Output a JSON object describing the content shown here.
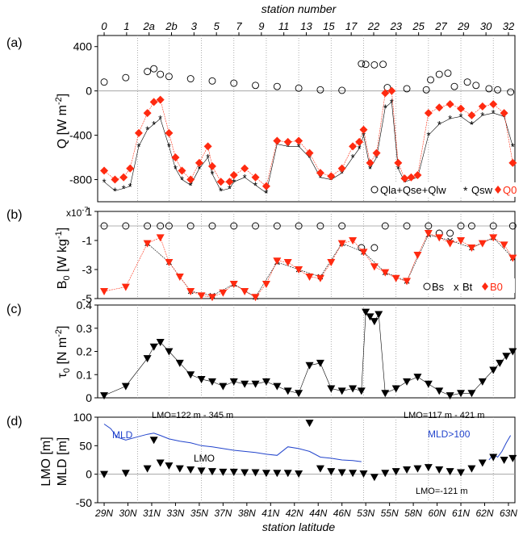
{
  "top_axis": {
    "title": "station number",
    "ticks": [
      "0",
      "1",
      "2a",
      "2b",
      "3",
      "5",
      "7",
      "9",
      "11",
      "13",
      "15",
      "17",
      "22",
      "23",
      "25",
      "27",
      "29",
      "30",
      "32"
    ]
  },
  "bottom_axis": {
    "title": "station latitude",
    "ticks": [
      "29N",
      "30N",
      "31N",
      "33N",
      "35N",
      "37N",
      "38N",
      "41N",
      "42N",
      "44N",
      "46N",
      "53N",
      "55N",
      "58N",
      "60N",
      "61N",
      "62N",
      "63N"
    ]
  },
  "colors": {
    "red": "#ff2a10",
    "blue": "#2244cc",
    "black": "#000000",
    "grid": "#999999"
  },
  "chart_data": [
    {
      "panel_label": "(a)",
      "type": "scatter",
      "ylabel": "Q [W m",
      "ylabel_sup": "-2",
      "ylabel_tail": "]",
      "ylim": [
        -1000,
        500
      ],
      "yticks": [
        400,
        0,
        -400,
        -800
      ],
      "legend_placement": "bottom-right",
      "series": [
        {
          "name": "Q_la+Q_se+Q_lw",
          "marker": "circle",
          "legend": "Qla+Qse+Qlw",
          "x": [
            0.0,
            1.0,
            2.0,
            2.3,
            2.6,
            3.0,
            4.0,
            5.0,
            6.0,
            7.0,
            8.0,
            9.0,
            10.0,
            11.0,
            11.9,
            12.1,
            12.5,
            12.9,
            13.1,
            14.0,
            14.9,
            15.1,
            15.5,
            15.9,
            16.2,
            16.8,
            17.2,
            17.8,
            18.2,
            18.8
          ],
          "values": [
            80,
            120,
            175,
            200,
            150,
            130,
            110,
            90,
            70,
            50,
            40,
            25,
            10,
            5,
            245,
            240,
            235,
            240,
            30,
            20,
            10,
            100,
            150,
            160,
            40,
            80,
            50,
            20,
            10,
            -10
          ]
        },
        {
          "name": "Q_sw",
          "marker": "asterisk",
          "legend": "Qsw",
          "x": [
            0.0,
            0.5,
            0.9,
            1.2,
            1.6,
            2.0,
            2.3,
            2.6,
            3.0,
            3.3,
            3.6,
            4.0,
            4.4,
            4.8,
            5.0,
            5.4,
            5.8,
            6.0,
            6.5,
            7.0,
            7.5,
            8.0,
            8.5,
            9.0,
            9.5,
            10.0,
            10.5,
            11.0,
            11.5,
            11.8,
            12.0,
            12.3,
            12.6,
            13.0,
            13.3,
            13.6,
            13.9,
            14.2,
            14.5,
            15.0,
            15.5,
            16.0,
            16.5,
            17.0,
            17.5,
            18.0,
            18.5,
            18.9
          ],
          "values": [
            -820,
            -900,
            -880,
            -860,
            -500,
            -350,
            -300,
            -250,
            -500,
            -700,
            -800,
            -850,
            -700,
            -600,
            -750,
            -900,
            -880,
            -820,
            -780,
            -850,
            -920,
            -480,
            -500,
            -500,
            -600,
            -780,
            -800,
            -740,
            -600,
            -520,
            -400,
            -700,
            -600,
            -150,
            -100,
            -700,
            -820,
            -800,
            -780,
            -400,
            -300,
            -250,
            -230,
            -300,
            -220,
            -200,
            -230,
            -500
          ]
        },
        {
          "name": "Q_0",
          "marker": "diamond",
          "legend": "Q0",
          "x": [
            0.0,
            0.5,
            0.9,
            1.2,
            1.6,
            2.0,
            2.3,
            2.6,
            3.0,
            3.3,
            3.6,
            4.0,
            4.4,
            4.8,
            5.0,
            5.4,
            5.8,
            6.0,
            6.5,
            7.0,
            7.5,
            8.0,
            8.5,
            9.0,
            9.5,
            10.0,
            10.5,
            11.0,
            11.5,
            11.8,
            12.0,
            12.3,
            12.6,
            13.0,
            13.3,
            13.6,
            13.9,
            14.2,
            14.5,
            15.0,
            15.5,
            16.0,
            16.5,
            17.0,
            17.5,
            18.0,
            18.5,
            18.9
          ],
          "values": [
            -720,
            -800,
            -780,
            -700,
            -380,
            -200,
            -100,
            -80,
            -380,
            -600,
            -720,
            -800,
            -650,
            -500,
            -680,
            -820,
            -820,
            -760,
            -700,
            -780,
            -860,
            -450,
            -460,
            -450,
            -560,
            -740,
            -770,
            -700,
            -500,
            -460,
            -350,
            -650,
            -560,
            -20,
            0,
            -650,
            -790,
            -780,
            -760,
            -200,
            -150,
            -120,
            -160,
            -220,
            -140,
            -120,
            -200,
            -650
          ]
        }
      ]
    },
    {
      "panel_label": "(b)",
      "type": "scatter",
      "ylabel": "B",
      "ylabel_sub": "0",
      "ylabel_tail": " [W kg",
      "ylabel_sup": "-1",
      "ylabel_end": "]",
      "scale_note": "x10",
      "scale_note_sup": "-7",
      "ylim": [
        -5,
        1
      ],
      "yticks": [
        1,
        -1,
        -3,
        -5
      ],
      "legend_placement": "bottom-right",
      "series": [
        {
          "name": "B_s",
          "marker": "circle",
          "legend": "Bs",
          "x": [
            0.0,
            1.0,
            2.0,
            2.6,
            3.0,
            4.0,
            5.0,
            6.0,
            7.0,
            8.0,
            9.0,
            10.0,
            11.0,
            11.9,
            12.5,
            13.0,
            14.0,
            15.0,
            15.5,
            16.0,
            16.5,
            17.0,
            18.0,
            18.9
          ],
          "values": [
            0,
            0,
            0,
            0,
            0,
            0,
            0,
            0,
            0,
            0,
            0,
            0,
            0,
            -1.5,
            -1.5,
            0,
            0,
            0,
            -0.5,
            -0.5,
            0,
            0,
            0,
            0
          ]
        },
        {
          "name": "B_t",
          "marker": "cross",
          "legend": "Bt",
          "x": [
            2.0,
            3.0,
            4.0,
            5.0,
            6.0,
            7.0,
            8.0,
            9.0,
            10.0,
            11.0,
            12.0,
            13.0,
            14.0,
            15.0,
            16.0,
            17.0,
            18.0,
            18.9
          ],
          "values": [
            -1.2,
            -2.5,
            -4.5,
            -4.8,
            -4.0,
            -4.9,
            -2.5,
            -3.0,
            -3.5,
            -1.2,
            -1.8,
            -3.2,
            -3.8,
            -0.6,
            -1.0,
            -1.5,
            -0.8,
            -2.2
          ]
        },
        {
          "name": "B_0",
          "marker": "triangle-down",
          "legend": "B0",
          "x": [
            0.0,
            1.0,
            2.0,
            2.6,
            3.0,
            3.5,
            4.0,
            4.5,
            5.0,
            5.5,
            6.0,
            6.5,
            7.0,
            7.5,
            8.0,
            8.5,
            9.0,
            9.5,
            10.0,
            10.5,
            11.0,
            11.5,
            12.0,
            12.5,
            13.0,
            13.5,
            14.0,
            14.5,
            15.0,
            15.5,
            16.0,
            16.5,
            17.0,
            17.5,
            18.0,
            18.5,
            18.9
          ],
          "values": [
            -4.5,
            -4.2,
            -1.2,
            -0.8,
            -2.5,
            -3.5,
            -4.5,
            -4.8,
            -4.9,
            -4.6,
            -4.0,
            -4.5,
            -4.9,
            -4.0,
            -2.4,
            -2.5,
            -3.0,
            -3.5,
            -3.6,
            -2.5,
            -1.2,
            -1.0,
            -1.8,
            -2.8,
            -3.2,
            -3.6,
            -3.8,
            -2.0,
            -0.5,
            -0.8,
            -1.2,
            -1.0,
            -1.5,
            -1.2,
            -0.8,
            -1.3,
            -2.2
          ]
        }
      ]
    },
    {
      "panel_label": "(c)",
      "type": "scatter",
      "ylabel": "τ",
      "ylabel_sub": "0",
      "ylabel_tail": " [N m",
      "ylabel_sup": "-2",
      "ylabel_end": "]",
      "ylim": [
        0,
        0.4
      ],
      "yticks": [
        0.4,
        0.3,
        0.2,
        0.1,
        0
      ],
      "series": [
        {
          "name": "tau_0",
          "marker": "triangle-down",
          "x": [
            0.0,
            1.0,
            2.0,
            2.3,
            2.6,
            3.0,
            3.5,
            4.0,
            4.5,
            5.0,
            5.5,
            6.0,
            6.5,
            7.0,
            7.5,
            8.0,
            8.5,
            9.0,
            9.5,
            10.0,
            10.5,
            11.0,
            11.5,
            11.9,
            12.1,
            12.3,
            12.5,
            12.7,
            13.0,
            13.5,
            14.0,
            14.5,
            15.0,
            15.5,
            16.0,
            16.5,
            17.0,
            17.5,
            18.0,
            18.3,
            18.6,
            18.9
          ],
          "values": [
            0.01,
            0.05,
            0.17,
            0.22,
            0.24,
            0.2,
            0.15,
            0.1,
            0.08,
            0.07,
            0.05,
            0.07,
            0.06,
            0.06,
            0.07,
            0.05,
            0.03,
            0.02,
            0.14,
            0.15,
            0.04,
            0.03,
            0.04,
            0.03,
            0.37,
            0.35,
            0.33,
            0.36,
            0.02,
            0.04,
            0.07,
            0.09,
            0.06,
            0.03,
            0.01,
            0.02,
            0.02,
            0.07,
            0.12,
            0.15,
            0.18,
            0.2
          ]
        }
      ]
    },
    {
      "panel_label": "(d)",
      "type": "line",
      "ylabel_line1": "LMO [m]",
      "ylabel_line2": "MLD [m]",
      "ylim": [
        -50,
        100
      ],
      "yticks": [
        100,
        50,
        0,
        -50
      ],
      "series": [
        {
          "name": "MLD",
          "style": "line",
          "label": "MLD",
          "x": [
            0.0,
            0.3,
            0.6,
            1.0,
            1.5,
            2.0,
            2.3,
            2.6,
            3.0,
            3.5,
            4.0,
            4.5,
            5.0,
            5.5,
            6.0,
            6.5,
            7.0,
            7.5,
            8.0,
            8.5,
            9.0,
            9.5,
            10.0,
            10.5,
            11.0,
            11.5,
            11.9
          ],
          "values": [
            88,
            80,
            65,
            60,
            65,
            70,
            72,
            68,
            62,
            58,
            55,
            50,
            48,
            45,
            42,
            40,
            38,
            35,
            33,
            48,
            45,
            40,
            30,
            28,
            25,
            24,
            22
          ]
        },
        {
          "name": "MLD_north",
          "style": "line",
          "x": [
            17.8,
            18.0,
            18.2,
            18.4,
            18.6,
            18.8
          ],
          "values": [
            25,
            35,
            30,
            40,
            55,
            68
          ]
        },
        {
          "name": "LMO",
          "style": "markers",
          "marker": "triangle-down",
          "label": "LMO",
          "x": [
            0.0,
            1.0,
            2.0,
            2.3,
            2.6,
            3.0,
            3.5,
            4.0,
            4.5,
            5.0,
            5.5,
            6.0,
            6.5,
            7.0,
            7.5,
            8.0,
            8.5,
            9.0,
            9.5,
            10.0,
            10.5,
            11.0,
            11.5,
            12.0,
            12.5,
            13.0,
            13.5,
            14.0,
            14.5,
            15.0,
            15.5,
            16.0,
            16.5,
            17.0,
            17.5,
            18.0,
            18.5,
            18.9
          ],
          "values": [
            0,
            2,
            10,
            60,
            20,
            15,
            10,
            8,
            6,
            5,
            4,
            4,
            3,
            3,
            2,
            2,
            2,
            1,
            90,
            10,
            5,
            3,
            2,
            1,
            -5,
            2,
            5,
            8,
            10,
            12,
            8,
            5,
            3,
            10,
            20,
            30,
            25,
            28
          ]
        }
      ],
      "annotations": [
        "LMO=122 m - 345 m",
        "LMO=117 m - 421 m",
        "MLD>100",
        "LMO=-121 m"
      ]
    }
  ]
}
